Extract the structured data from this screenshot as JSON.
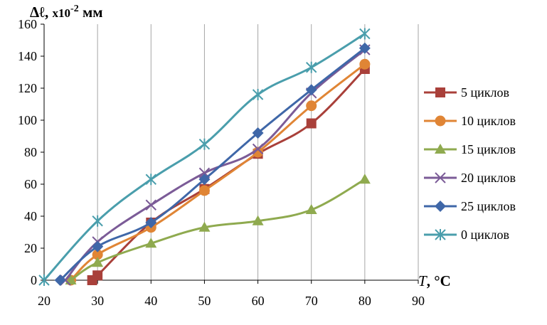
{
  "chart_data": {
    "type": "line",
    "title": "",
    "ylabel_parts": {
      "main": "Δℓ, ",
      "mult": "x10",
      "exp": "-2",
      "unit": " мм"
    },
    "xlabel_parts": {
      "var": "T",
      "unit": ", °C"
    },
    "xlim": [
      20,
      90
    ],
    "ylim": [
      0,
      160
    ],
    "xticks": [
      20,
      30,
      40,
      50,
      60,
      70,
      80,
      90
    ],
    "yticks": [
      0,
      20,
      40,
      60,
      80,
      100,
      120,
      140,
      160
    ],
    "grid": {
      "vertical": true,
      "horizontal": false
    },
    "legend_position": "right",
    "series": [
      {
        "name": "5 циклов",
        "color": "#A9403A",
        "marker": "square",
        "x": [
          29,
          30,
          40,
          50,
          60,
          70,
          80
        ],
        "y": [
          0,
          3,
          36,
          57,
          79,
          98,
          132
        ]
      },
      {
        "name": "10 циклов",
        "color": "#E08535",
        "marker": "circle",
        "x": [
          25,
          30,
          40,
          50,
          60,
          70,
          80
        ],
        "y": [
          0,
          16,
          33,
          56,
          80,
          109,
          135
        ]
      },
      {
        "name": "15 циклов",
        "color": "#8FAA4F",
        "marker": "triangle",
        "x": [
          25,
          30,
          40,
          50,
          60,
          70,
          80
        ],
        "y": [
          0,
          11,
          23,
          33,
          37,
          44,
          63
        ]
      },
      {
        "name": "20 циклов",
        "color": "#7B5B97",
        "marker": "x",
        "x": [
          24,
          30,
          40,
          50,
          60,
          70,
          80
        ],
        "y": [
          0,
          24,
          47,
          67,
          82,
          117,
          144
        ]
      },
      {
        "name": "25 циклов",
        "color": "#3F67A8",
        "marker": "diamond",
        "x": [
          23,
          30,
          40,
          50,
          60,
          70,
          80
        ],
        "y": [
          0,
          21,
          36,
          63,
          92,
          119,
          145
        ]
      },
      {
        "name": "0 циклов",
        "color": "#4A9EAC",
        "marker": "star",
        "x": [
          20,
          30,
          40,
          50,
          60,
          70,
          80
        ],
        "y": [
          0,
          37,
          63,
          85,
          116,
          133,
          154
        ]
      }
    ]
  }
}
